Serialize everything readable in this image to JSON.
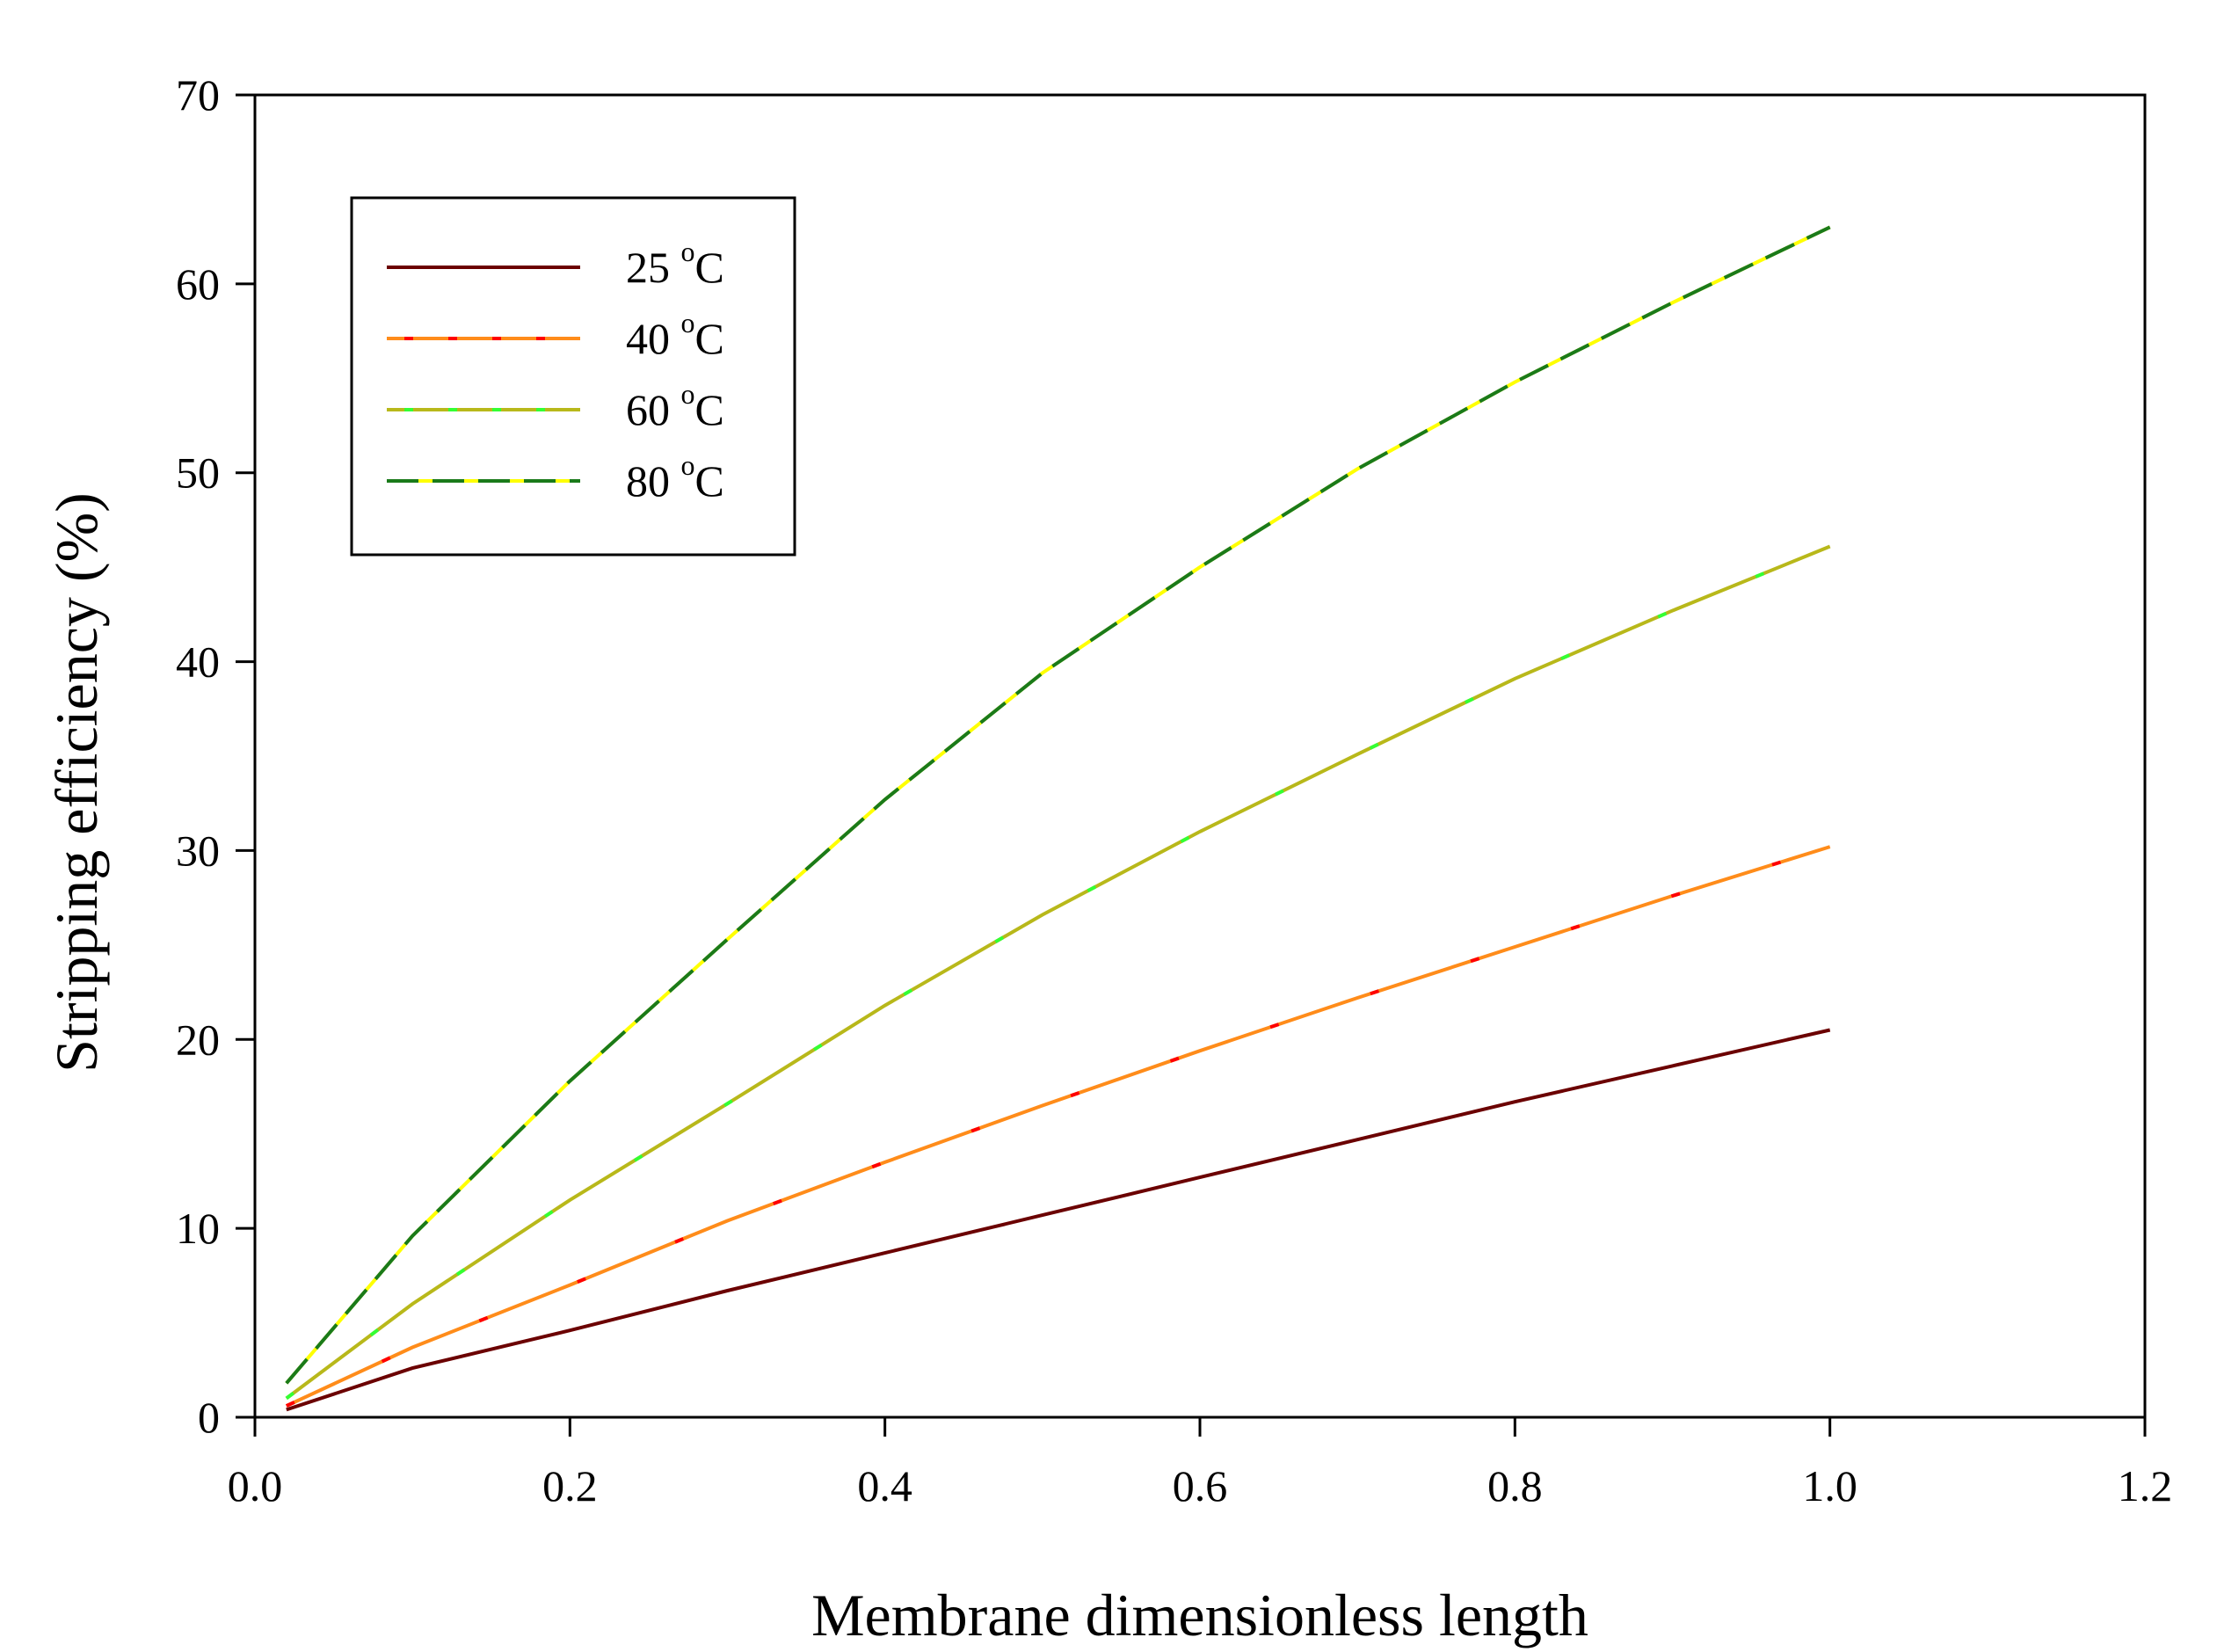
{
  "chart_data": {
    "type": "line",
    "title": "",
    "xlabel": "Membrane dimensionless length",
    "ylabel": "Stripping efficiency (%)",
    "xlim": [
      0.0,
      1.2
    ],
    "ylim": [
      0,
      70
    ],
    "xticks": [
      0.0,
      0.2,
      0.4,
      0.6,
      0.8,
      1.0,
      1.2
    ],
    "xtick_labels": [
      "0.0",
      "0.2",
      "0.4",
      "0.6",
      "0.8",
      "1.0",
      "1.2"
    ],
    "yticks": [
      0,
      10,
      20,
      30,
      40,
      50,
      60,
      70
    ],
    "ytick_labels": [
      "0",
      "10",
      "20",
      "30",
      "40",
      "50",
      "60",
      "70"
    ],
    "grid": false,
    "legend_position": "top-left",
    "x": [
      0.02,
      0.1,
      0.2,
      0.3,
      0.4,
      0.5,
      0.6,
      0.7,
      0.8,
      0.9,
      1.0
    ],
    "series": [
      {
        "name": "25 °C",
        "temp": "25",
        "unit": "C",
        "color": "#6b0000",
        "dash_color": "",
        "dashed": false,
        "values": [
          0.4,
          2.6,
          4.6,
          6.7,
          8.7,
          10.7,
          12.7,
          14.7,
          16.7,
          18.6,
          20.5
        ]
      },
      {
        "name": "40 °C",
        "temp": "40",
        "unit": "C",
        "color": "#ff8c1a",
        "dash_color": "#ff0000",
        "dashed": false,
        "values": [
          0.6,
          3.7,
          7.0,
          10.4,
          13.5,
          16.5,
          19.4,
          22.2,
          24.9,
          27.6,
          30.2
        ]
      },
      {
        "name": "60 °C",
        "temp": "60",
        "unit": "C",
        "color": "#b8b81a",
        "dash_color": "#33ff33",
        "dashed": false,
        "values": [
          1.0,
          6.0,
          11.5,
          16.6,
          21.8,
          26.6,
          31.0,
          35.1,
          39.1,
          42.7,
          46.1
        ]
      },
      {
        "name": "80 °C",
        "temp": "80",
        "unit": "C",
        "color": "#1a7a1a",
        "dash_color": "#ffff00",
        "dashed": true,
        "values": [
          1.8,
          9.6,
          17.8,
          25.3,
          32.7,
          39.4,
          45.0,
          50.2,
          54.8,
          59.0,
          63.0
        ]
      }
    ]
  }
}
